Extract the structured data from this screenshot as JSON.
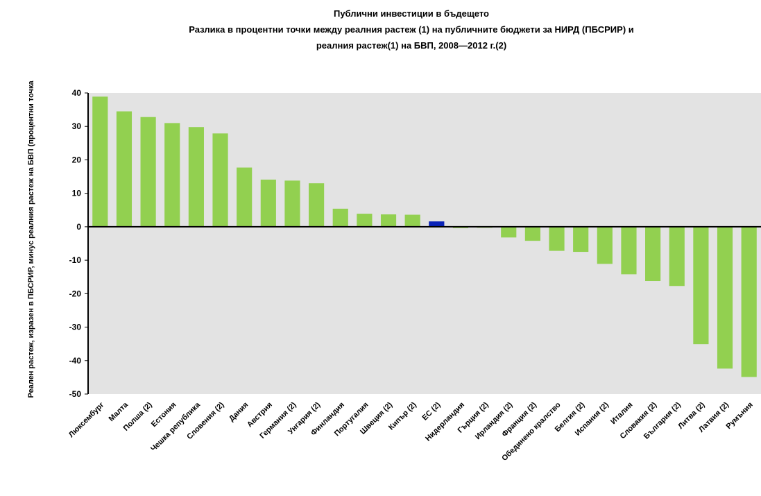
{
  "chart_data": {
    "type": "bar",
    "title": "Публични инвестиции в бъдещето",
    "subtitle_line1": "Разлика в процентни точки между реалния растеж (1) на публичните бюджети за НИРД (ПБСРИР) и",
    "subtitle_line2": "реалния растеж(1) на БВП, 2008—2012 г.(2)",
    "ylabel": "Реален растеж, изразен в ПБСРИР, минус реалния растеж на БВП (процентни точка",
    "xlabel": "",
    "ylim": [
      -50,
      40
    ],
    "yticks": [
      40,
      30,
      20,
      10,
      0,
      -10,
      -20,
      -30,
      -40,
      -50
    ],
    "grid": false,
    "legend": "none",
    "colors": {
      "default": "#92d050",
      "highlight": "#0a22b8",
      "plot_background": "#e3e3e3"
    },
    "categories": [
      "Люксембург",
      "Малта",
      "Полша (2)",
      "Естония",
      "Чешка република",
      "Словения (2)",
      "Дания",
      "Австрия",
      "Германия (2)",
      "Унгария (2)",
      "Финландия",
      "Португалия",
      "Швеция (2)",
      "Кипър (2)",
      "ЕС (2)",
      "Нидерландия",
      "Гърция (2)",
      "Ирландия (2)",
      "Франция (2)",
      "Обединено кралство",
      "Белгия (2)",
      "Испания (2)",
      "Италия",
      "Словакия (2)",
      "България (2)",
      "Литва (2)",
      "Латвия (2)",
      "Румъния"
    ],
    "values": [
      38.9,
      34.5,
      32.8,
      31.0,
      29.8,
      27.9,
      17.7,
      14.1,
      13.8,
      13.0,
      5.4,
      3.9,
      3.7,
      3.6,
      1.6,
      -0.4,
      -0.3,
      -3.2,
      -4.2,
      -7.2,
      -7.5,
      -11.1,
      -14.2,
      -16.2,
      -17.7,
      -35.1,
      -42.4,
      -44.9
    ],
    "highlight_category": "ЕС (2)"
  }
}
